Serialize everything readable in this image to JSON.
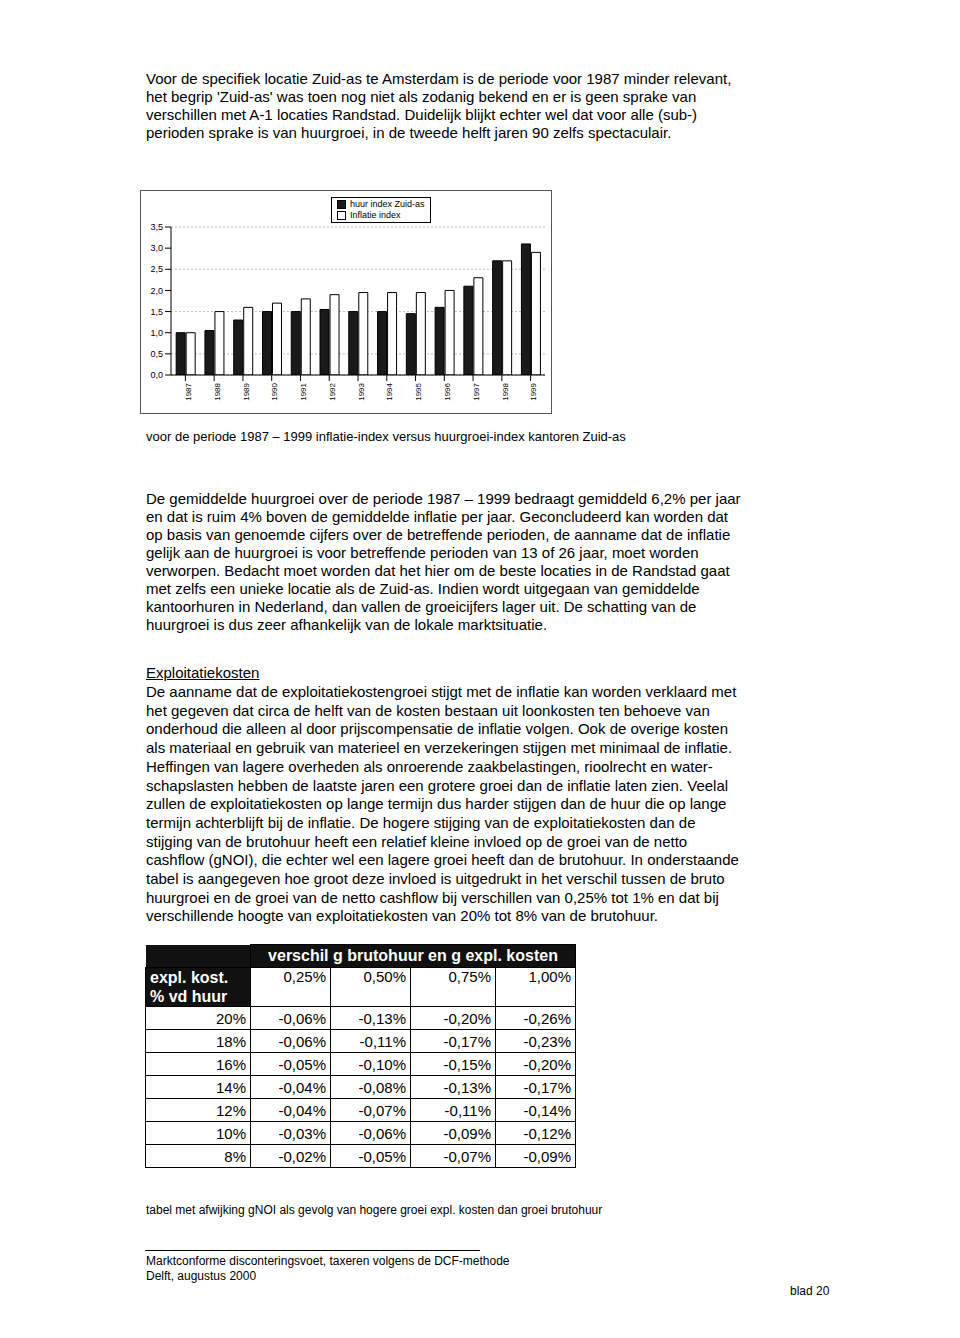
{
  "intro": [
    "Voor de specifiek locatie Zuid-as te Amsterdam is de periode voor 1987 minder relevant,",
    "het begrip 'Zuid-as' was toen nog niet als zodanig bekend en er is geen sprake van",
    "verschillen met A-1 locaties Randstad. Duidelijk blijkt echter wel dat voor alle (sub-)",
    "perioden sprake is van huurgroei, in de tweede helft jaren 90 zelfs spectaculair."
  ],
  "chart_data": {
    "type": "bar",
    "categories": [
      "1987",
      "1988",
      "1989",
      "1990",
      "1991",
      "1992",
      "1993",
      "1994",
      "1995",
      "1996",
      "1997",
      "1998",
      "1999"
    ],
    "series": [
      {
        "name": "huur index Zuid-as",
        "color": "#1a1a1a",
        "values": [
          1.0,
          1.05,
          1.3,
          1.5,
          1.5,
          1.55,
          1.5,
          1.5,
          1.45,
          1.6,
          2.1,
          2.7,
          3.1
        ]
      },
      {
        "name": "Inflatie index",
        "color": "#ffffff",
        "values": [
          1.0,
          1.5,
          1.6,
          1.7,
          1.8,
          1.9,
          1.95,
          1.95,
          1.95,
          2.0,
          2.3,
          2.7,
          2.9
        ]
      }
    ],
    "ylim": [
      0,
      3.5
    ],
    "yticks": [
      {
        "value": 0,
        "label": "0,0"
      },
      {
        "value": 0.5,
        "label": "0,5"
      },
      {
        "value": 1,
        "label": "1,0"
      },
      {
        "value": 1.5,
        "label": "1,5"
      },
      {
        "value": 2,
        "label": "2,0"
      },
      {
        "value": 2.5,
        "label": "2,5"
      },
      {
        "value": 3,
        "label": "3,0"
      },
      {
        "value": 3.5,
        "label": "3,5"
      }
    ],
    "grid": true,
    "legend": "top"
  },
  "chart_caption": "voor de periode 1987 – 1999 inflatie-index versus huurgroei-index kantoren Zuid-as",
  "paragraph2": [
    "De gemiddelde huurgroei over de periode 1987 – 1999 bedraagt gemiddeld 6,2% per jaar",
    "en dat is ruim 4% boven de gemiddelde inflatie per jaar. Geconcludeerd kan worden dat",
    "op basis van genoemde cijfers over de betreffende perioden, de aanname dat de inflatie",
    "gelijk aan de huurgroei is voor betreffende perioden van 13 of 26 jaar, moet worden",
    "verworpen. Bedacht moet worden dat het hier om de beste locaties in de Randstad gaat",
    "met zelfs een unieke locatie als de Zuid-as. Indien wordt uitgegaan van gemiddelde",
    "kantoorhuren in Nederland, dan vallen de groeicijfers lager uit. De schatting van de",
    "huurgroei is dus zeer afhankelijk van de lokale marktsituatie."
  ],
  "heading": "Exploitatiekosten",
  "paragraph3": [
    "De aanname dat de exploitatiekostengroei stijgt met de inflatie kan worden verklaard met",
    "het gegeven dat circa de helft van de kosten bestaan uit loonkosten ten behoeve van",
    "onderhoud die alleen al door prijscompensatie de inflatie volgen. Ook de overige kosten",
    "als materiaal en gebruik van materieel en verzekeringen stijgen met minimaal de inflatie.",
    "Heffingen van lagere overheden als onroerende zaakbelastingen, rioolrecht en water-",
    "schapslasten hebben de laatste jaren een grotere groei dan de inflatie laten zien. Veelal",
    "zullen de exploitatiekosten op lange termijn dus harder stijgen dan de huur die op lange",
    "termijn achterblijft bij de inflatie. De hogere stijging van de exploitatiekosten dan de",
    "stijging van de brutohuur heeft een relatief kleine invloed op de groei van de netto",
    "cashflow (gNOI), die echter wel een lagere groei heeft dan de brutohuur. In onderstaande",
    "tabel is aangegeven hoe groot deze invloed is uitgedrukt in het verschil tussen de bruto",
    "huurgroei en de groei van de netto cashflow bij verschillen van 0,25% tot 1% en dat bij",
    "verschillende hoogte van exploitatiekosten van 20% tot 8% van de brutohuur."
  ],
  "table": {
    "group_header": "verschil g brutohuur en g expl. kosten",
    "row_header": [
      "expl. kost.",
      "% vd huur"
    ],
    "columns": [
      "0,25%",
      "0,50%",
      "0,75%",
      "1,00%"
    ],
    "rows": [
      [
        "20%",
        "-0,06%",
        "-0,13%",
        "-0,20%",
        "-0,26%"
      ],
      [
        "18%",
        "-0,06%",
        "-0,11%",
        "-0,17%",
        "-0,23%"
      ],
      [
        "16%",
        "-0,05%",
        "-0,10%",
        "-0,15%",
        "-0,20%"
      ],
      [
        "14%",
        "-0,04%",
        "-0,08%",
        "-0,13%",
        "-0,17%"
      ],
      [
        "12%",
        "-0,04%",
        "-0,07%",
        "-0,11%",
        "-0,14%"
      ],
      [
        "10%",
        "-0,03%",
        "-0,06%",
        "-0,09%",
        "-0,12%"
      ],
      [
        "8%",
        "-0,02%",
        "-0,05%",
        "-0,07%",
        "-0,09%"
      ]
    ]
  },
  "table_caption": "tabel met afwijking gNOI als gevolg van hogere groei expl. kosten dan groei brutohuur",
  "footer": [
    "Marktconforme disconteringsvoet, taxeren volgens de DCF-methode",
    "Delft, augustus 2000"
  ],
  "page_number": "blad 20"
}
